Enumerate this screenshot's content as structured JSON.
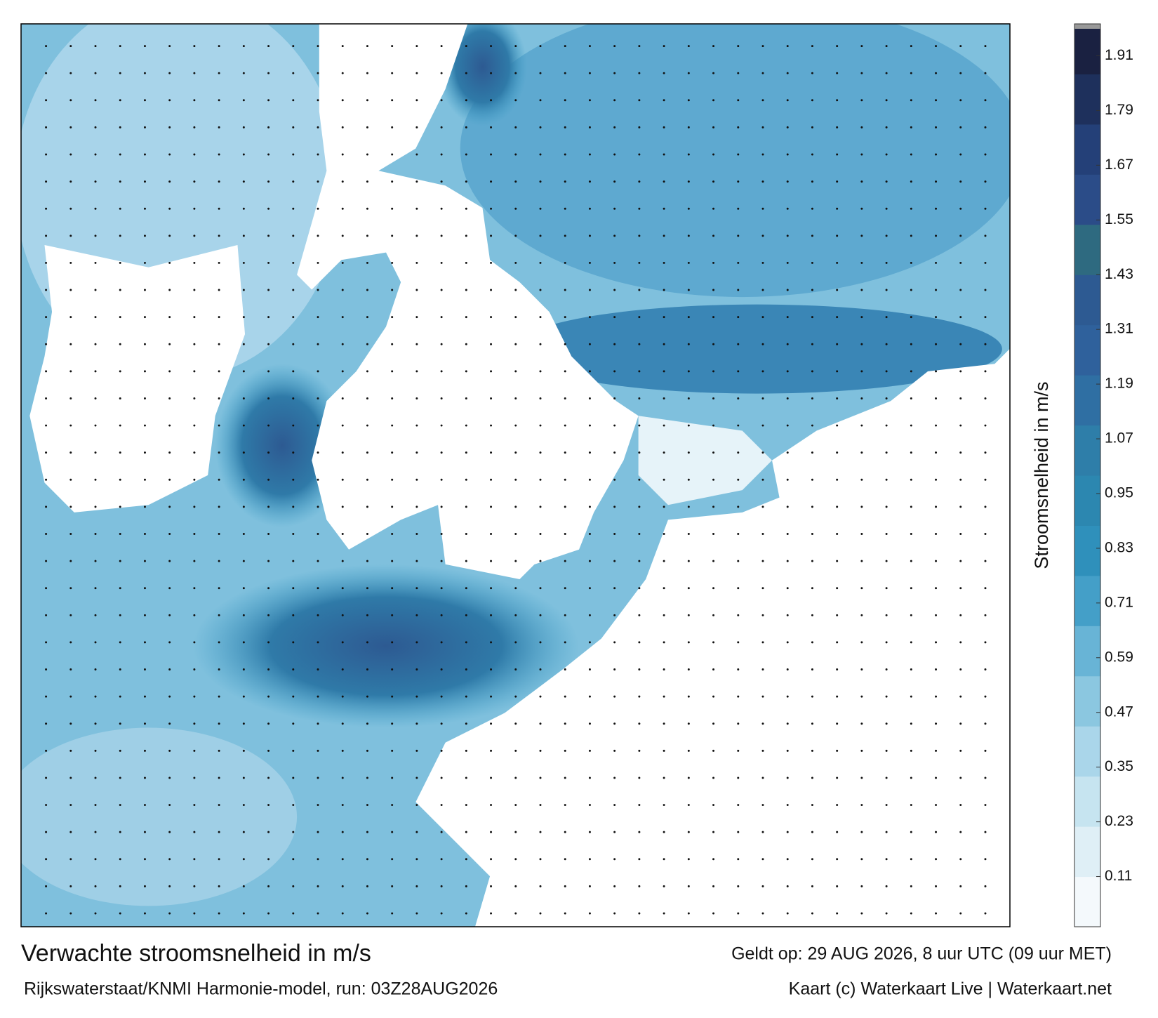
{
  "chart_data": {
    "type": "colormap",
    "title": "Verwachte stroomsnelheid in m/s",
    "subtitle": "Rijkswaterstaat/KNMI Harmonie-model, run: 03Z28AUG2026",
    "valid_time": "Geldt op: 29 AUG 2026, 8 uur UTC (09 uur MET)",
    "credit": "Kaart (c) Waterkaart Live | Waterkaart.net",
    "colorbar_label": "Stroomsnelheid in m/s",
    "ylim": [
      0,
      1.98
    ],
    "yticks": [
      0.11,
      0.23,
      0.35,
      0.47,
      0.59,
      0.71,
      0.83,
      0.95,
      1.07,
      1.19,
      1.31,
      1.43,
      1.55,
      1.67,
      1.79,
      1.91
    ],
    "colors": [
      "#f4f9fc",
      "#dfeff6",
      "#c6e4f0",
      "#aad6ea",
      "#8bc7e0",
      "#68b4d6",
      "#449fc8",
      "#2f90bb",
      "#2c87b0",
      "#2e7ea9",
      "#2f6fa3",
      "#2f619c",
      "#2d5a92",
      "#2e6a80",
      "#2b4c88",
      "#244078",
      "#1e305c",
      "#1a2141"
    ]
  }
}
